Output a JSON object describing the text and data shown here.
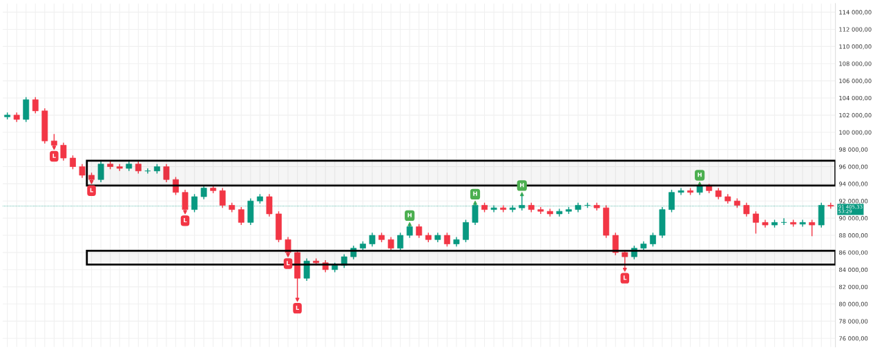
{
  "chart_data": {
    "type": "candlestick",
    "categories": [
      null,
      null,
      null,
      null,
      null,
      null,
      null,
      null,
      null,
      null,
      null,
      null,
      null,
      null,
      null,
      null,
      null,
      null,
      null,
      null,
      null,
      null,
      null,
      null,
      null,
      null,
      null,
      null,
      null,
      null,
      null,
      null,
      null,
      null,
      null,
      null,
      null,
      null,
      null,
      null,
      null,
      null,
      null,
      null,
      null,
      null,
      null,
      null,
      null,
      null,
      null,
      null,
      null,
      null,
      null,
      null,
      null,
      null,
      null,
      null,
      null,
      null,
      null,
      null,
      null,
      null,
      null,
      null,
      null,
      null,
      null,
      null,
      null,
      null,
      null,
      null,
      null,
      null,
      null,
      null,
      null,
      null,
      null,
      null,
      null,
      null,
      null,
      null,
      null
    ],
    "ohlc": [
      [
        101800,
        102300,
        101500,
        102000
      ],
      [
        102000,
        102300,
        101200,
        101500
      ],
      [
        101500,
        104100,
        101200,
        103800
      ],
      [
        103800,
        104100,
        102200,
        102500
      ],
      [
        102500,
        102800,
        98700,
        99000
      ],
      [
        99000,
        99800,
        98200,
        98500
      ],
      [
        98500,
        98800,
        96700,
        97000
      ],
      [
        97000,
        97300,
        95700,
        96000
      ],
      [
        96000,
        96300,
        94700,
        95000
      ],
      [
        95000,
        95300,
        94200,
        94500
      ],
      [
        94500,
        96600,
        94200,
        96300
      ],
      [
        96300,
        96600,
        95700,
        96000
      ],
      [
        96000,
        96300,
        95500,
        95800
      ],
      [
        95800,
        96600,
        95500,
        96300
      ],
      [
        96300,
        96600,
        95200,
        95500
      ],
      [
        95500,
        95800,
        95200,
        95500
      ],
      [
        95500,
        96300,
        95200,
        96000
      ],
      [
        96000,
        96300,
        94200,
        94500
      ],
      [
        94500,
        94800,
        92700,
        93000
      ],
      [
        93000,
        93300,
        90700,
        91000
      ],
      [
        91000,
        92800,
        90700,
        92500
      ],
      [
        92500,
        93800,
        92200,
        93500
      ],
      [
        93500,
        93800,
        92900,
        93200
      ],
      [
        93200,
        93500,
        91200,
        91500
      ],
      [
        91500,
        91800,
        90700,
        91000
      ],
      [
        91000,
        91300,
        89200,
        89500
      ],
      [
        89500,
        92300,
        89200,
        92000
      ],
      [
        92000,
        92800,
        91700,
        92500
      ],
      [
        92500,
        92800,
        90200,
        90500
      ],
      [
        90500,
        90800,
        87200,
        87500
      ],
      [
        87500,
        87800,
        85700,
        86000
      ],
      [
        86000,
        86300,
        80500,
        83000
      ],
      [
        83000,
        85300,
        82700,
        85000
      ],
      [
        85000,
        85300,
        84500,
        84800
      ],
      [
        84800,
        85100,
        83700,
        84000
      ],
      [
        84000,
        84800,
        83700,
        84500
      ],
      [
        84500,
        85800,
        84200,
        85500
      ],
      [
        85500,
        86800,
        85200,
        86500
      ],
      [
        86500,
        87300,
        86200,
        87000
      ],
      [
        87000,
        88300,
        86700,
        88000
      ],
      [
        88000,
        88300,
        87200,
        87500
      ],
      [
        87500,
        87800,
        86200,
        86500
      ],
      [
        86500,
        88300,
        86200,
        88000
      ],
      [
        88000,
        89300,
        87700,
        89000
      ],
      [
        89000,
        89300,
        87700,
        88000
      ],
      [
        88000,
        88300,
        87200,
        87500
      ],
      [
        87500,
        88300,
        87200,
        88000
      ],
      [
        88000,
        88300,
        86700,
        87000
      ],
      [
        87000,
        87800,
        86700,
        87500
      ],
      [
        87500,
        89800,
        87200,
        89500
      ],
      [
        89500,
        91800,
        89200,
        91500
      ],
      [
        91500,
        91800,
        90700,
        91000
      ],
      [
        91000,
        91500,
        90700,
        91200
      ],
      [
        91200,
        91500,
        90700,
        91000
      ],
      [
        91000,
        91500,
        90700,
        91200
      ],
      [
        91200,
        92800,
        90900,
        91500
      ],
      [
        91500,
        91800,
        90700,
        91000
      ],
      [
        91000,
        91300,
        90500,
        90800
      ],
      [
        90800,
        91100,
        90200,
        90500
      ],
      [
        90500,
        91100,
        90200,
        90800
      ],
      [
        90800,
        91300,
        90500,
        91000
      ],
      [
        91000,
        91800,
        90700,
        91500
      ],
      [
        91500,
        91800,
        91200,
        91500
      ],
      [
        91500,
        91800,
        90900,
        91200
      ],
      [
        91200,
        91500,
        87700,
        88000
      ],
      [
        88000,
        88300,
        85700,
        86000
      ],
      [
        86000,
        86300,
        84000,
        85500
      ],
      [
        85500,
        86800,
        85200,
        86500
      ],
      [
        86500,
        87300,
        86200,
        87000
      ],
      [
        87000,
        88300,
        86700,
        88000
      ],
      [
        88000,
        91300,
        87700,
        91000
      ],
      [
        91000,
        93300,
        90700,
        93000
      ],
      [
        93000,
        93500,
        92700,
        93200
      ],
      [
        93200,
        93500,
        92700,
        93000
      ],
      [
        93000,
        94000,
        92700,
        93800
      ],
      [
        93800,
        94000,
        92900,
        93200
      ],
      [
        93200,
        93500,
        92200,
        92500
      ],
      [
        92500,
        92800,
        91700,
        92000
      ],
      [
        92000,
        92300,
        91200,
        91500
      ],
      [
        91500,
        91800,
        90200,
        90500
      ],
      [
        90500,
        90800,
        88200,
        89500
      ],
      [
        89500,
        89800,
        88900,
        89200
      ],
      [
        89200,
        89800,
        88900,
        89500
      ],
      [
        89500,
        90000,
        89200,
        89500
      ],
      [
        89500,
        89800,
        89000,
        89300
      ],
      [
        89300,
        89800,
        89000,
        89500
      ],
      [
        89500,
        89800,
        87900,
        89200
      ],
      [
        89200,
        91800,
        88900,
        91500
      ],
      [
        91500,
        91800,
        91100,
        91400
      ]
    ],
    "ylim": [
      75000,
      115000
    ],
    "yticks": [
      {
        "value": 76000,
        "label": "76 000,00"
      },
      {
        "value": 78000,
        "label": "78 000,00"
      },
      {
        "value": 80000,
        "label": "80 000,00"
      },
      {
        "value": 82000,
        "label": "82 000,00"
      },
      {
        "value": 84000,
        "label": "84 000,00"
      },
      {
        "value": 86000,
        "label": "86 000,00"
      },
      {
        "value": 88000,
        "label": "88 000,00"
      },
      {
        "value": 90000,
        "label": "90 000,00"
      },
      {
        "value": 92000,
        "label": "92 000,00"
      },
      {
        "value": 94000,
        "label": "94 000,00"
      },
      {
        "value": 96000,
        "label": "96 000,00"
      },
      {
        "value": 98000,
        "label": "98 000,00"
      },
      {
        "value": 100000,
        "label": "100 000,00"
      },
      {
        "value": 102000,
        "label": "102 000,00"
      },
      {
        "value": 104000,
        "label": "104 000,00"
      },
      {
        "value": 106000,
        "label": "106 000,00"
      },
      {
        "value": 108000,
        "label": "108 000,00"
      },
      {
        "value": 110000,
        "label": "110 000,00"
      },
      {
        "value": 112000,
        "label": "112 000,00"
      },
      {
        "value": 114000,
        "label": "114 000,00"
      }
    ],
    "grid": true,
    "tick_labels": "y",
    "bands": [
      {
        "axis": "y",
        "from": 93800,
        "to": 96700,
        "color": "#000000"
      },
      {
        "axis": "y",
        "from": 84600,
        "to": 86200,
        "color": "#000000"
      }
    ],
    "ref_lines": [
      {
        "axis": "y",
        "value": 91405.33,
        "label": "91 405,33\n53:29",
        "color": "#089981",
        "line_style": "dotted"
      }
    ],
    "series": [
      {
        "name": "L",
        "type": "scatter",
        "color": "#f23645",
        "values": [
          null,
          null,
          null,
          null,
          null,
          98200,
          null,
          null,
          null,
          94200,
          null,
          null,
          null,
          null,
          null,
          null,
          null,
          null,
          null,
          90700,
          null,
          null,
          null,
          null,
          null,
          null,
          null,
          null,
          null,
          null,
          85700,
          80500,
          null,
          null,
          null,
          null,
          null,
          null,
          null,
          null,
          null,
          null,
          null,
          null,
          null,
          null,
          null,
          null,
          null,
          null,
          null,
          null,
          null,
          null,
          null,
          null,
          null,
          null,
          null,
          null,
          null,
          null,
          null,
          null,
          null,
          null,
          84000,
          null,
          null,
          null,
          null,
          null,
          null,
          null,
          null,
          null,
          null,
          null,
          null,
          null,
          null,
          null,
          null,
          null,
          null,
          null,
          null,
          null,
          null
        ]
      },
      {
        "name": "H",
        "type": "scatter",
        "color": "#4caf50",
        "values": [
          null,
          null,
          null,
          null,
          null,
          null,
          null,
          null,
          null,
          null,
          null,
          null,
          null,
          null,
          null,
          null,
          null,
          null,
          null,
          null,
          null,
          null,
          null,
          null,
          null,
          null,
          null,
          null,
          null,
          null,
          null,
          null,
          null,
          null,
          null,
          null,
          null,
          null,
          null,
          null,
          null,
          null,
          null,
          89300,
          null,
          null,
          null,
          null,
          null,
          null,
          91800,
          null,
          null,
          null,
          null,
          92800,
          null,
          null,
          null,
          null,
          null,
          null,
          null,
          null,
          null,
          null,
          null,
          null,
          null,
          null,
          null,
          null,
          null,
          null,
          94000,
          null,
          null,
          null,
          null,
          null,
          null,
          null,
          null,
          null,
          null,
          null,
          null,
          null,
          null
        ]
      }
    ]
  }
}
